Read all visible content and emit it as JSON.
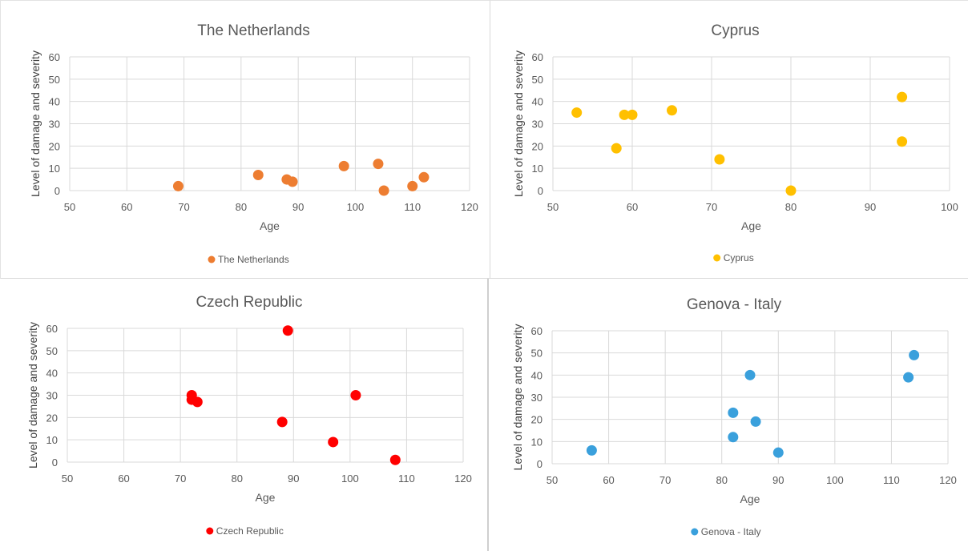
{
  "chart_data": [
    {
      "type": "scatter",
      "title": "The Netherlands",
      "xlabel": "Age",
      "ylabel": "Level of damage and severity",
      "xlim": [
        50,
        120
      ],
      "ylim": [
        0,
        60
      ],
      "xticks": [
        "50",
        "60",
        "70",
        "80",
        "90",
        "100",
        "110",
        "120"
      ],
      "yticks": [
        "0",
        "10",
        "20",
        "30",
        "40",
        "50",
        "60"
      ],
      "grid": true,
      "legend": "bottom",
      "series": [
        {
          "name": "The Netherlands",
          "color": "#ed7d31",
          "points": [
            [
              69,
              2
            ],
            [
              83,
              7
            ],
            [
              88,
              5
            ],
            [
              89,
              4
            ],
            [
              98,
              11
            ],
            [
              104,
              12
            ],
            [
              105,
              0
            ],
            [
              110,
              2
            ],
            [
              112,
              6
            ]
          ]
        }
      ]
    },
    {
      "type": "scatter",
      "title": "Cyprus",
      "xlabel": "Age",
      "ylabel": "Level of damage and severity",
      "xlim": [
        50,
        100
      ],
      "ylim": [
        0,
        60
      ],
      "xticks": [
        "50",
        "60",
        "70",
        "80",
        "90",
        "100"
      ],
      "yticks": [
        "0",
        "10",
        "20",
        "30",
        "40",
        "50",
        "60"
      ],
      "grid": true,
      "legend": "bottom",
      "series": [
        {
          "name": "Cyprus",
          "color": "#ffc000",
          "points": [
            [
              53,
              35
            ],
            [
              58,
              19
            ],
            [
              59,
              34
            ],
            [
              60,
              34
            ],
            [
              65,
              36
            ],
            [
              71,
              14
            ],
            [
              80,
              0
            ],
            [
              94,
              42
            ],
            [
              94,
              22
            ]
          ]
        }
      ]
    },
    {
      "type": "scatter",
      "title": "Czech Republic",
      "xlabel": "Age",
      "ylabel": "Level of damage and severity",
      "xlim": [
        50,
        120
      ],
      "ylim": [
        0,
        60
      ],
      "xticks": [
        "50",
        "60",
        "70",
        "80",
        "90",
        "100",
        "110",
        "120"
      ],
      "yticks": [
        "0",
        "10",
        "20",
        "30",
        "40",
        "50",
        "60"
      ],
      "grid": true,
      "legend": "bottom",
      "series": [
        {
          "name": "Czech Republic",
          "color": "#ff0000",
          "points": [
            [
              72,
              30
            ],
            [
              72,
              28
            ],
            [
              73,
              27
            ],
            [
              88,
              18
            ],
            [
              89,
              59
            ],
            [
              97,
              9
            ],
            [
              101,
              30
            ],
            [
              108,
              1
            ]
          ]
        }
      ]
    },
    {
      "type": "scatter",
      "title": "Genova - Italy",
      "xlabel": "Age",
      "ylabel": "Level of damage and severity",
      "xlim": [
        50,
        120
      ],
      "ylim": [
        0,
        60
      ],
      "xticks": [
        "50",
        "60",
        "70",
        "80",
        "90",
        "100",
        "110",
        "120"
      ],
      "yticks": [
        "0",
        "10",
        "20",
        "30",
        "40",
        "50",
        "60"
      ],
      "grid": true,
      "legend": "bottom",
      "series": [
        {
          "name": "Genova - Italy",
          "color": "#3aa0dc",
          "points": [
            [
              57,
              6
            ],
            [
              82,
              23
            ],
            [
              82,
              12
            ],
            [
              85,
              40
            ],
            [
              86,
              19
            ],
            [
              90,
              5
            ],
            [
              113,
              39
            ],
            [
              114,
              49
            ]
          ]
        }
      ]
    }
  ]
}
